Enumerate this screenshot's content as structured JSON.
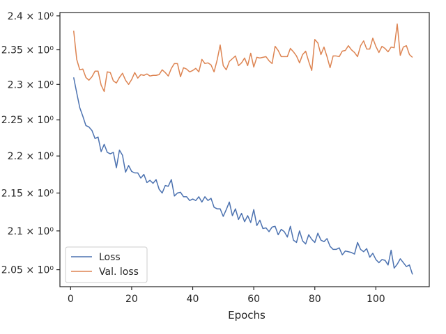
{
  "chart_data": {
    "type": "line",
    "title": "",
    "xlabel": "Epochs",
    "ylabel": "",
    "yscale": "log",
    "xlim": [
      -3.5,
      117.5
    ],
    "ylim": [
      2.0285,
      2.405
    ],
    "grid": false,
    "legend_position": "lower-left",
    "x_ticks": [
      0,
      20,
      40,
      60,
      80,
      100
    ],
    "y_ticks": [
      {
        "value": 2.05,
        "label": "2.05 × 10⁰"
      },
      {
        "value": 2.1,
        "label": "2.1 × 10⁰"
      },
      {
        "value": 2.15,
        "label": "2.15 × 10⁰"
      },
      {
        "value": 2.2,
        "label": "2.2 × 10⁰"
      },
      {
        "value": 2.25,
        "label": "2.25 × 10⁰"
      },
      {
        "value": 2.3,
        "label": "2.3 × 10⁰"
      },
      {
        "value": 2.35,
        "label": "2.35 × 10⁰"
      },
      {
        "value": 2.4,
        "label": "2.4 × 10⁰"
      }
    ],
    "series": [
      {
        "name": "Loss",
        "color": "#4c72b0",
        "x": [
          1,
          2,
          3,
          4,
          5,
          6,
          7,
          8,
          9,
          10,
          11,
          12,
          13,
          14,
          15,
          16,
          17,
          18,
          19,
          20,
          21,
          22,
          23,
          24,
          25,
          26,
          27,
          28,
          29,
          30,
          31,
          32,
          33,
          34,
          35,
          36,
          37,
          38,
          39,
          40,
          41,
          42,
          43,
          44,
          45,
          46,
          47,
          48,
          49,
          50,
          51,
          52,
          53,
          54,
          55,
          56,
          57,
          58,
          59,
          60,
          61,
          62,
          63,
          64,
          65,
          66,
          67,
          68,
          69,
          70,
          71,
          72,
          73,
          74,
          75,
          76,
          77,
          78,
          79,
          80,
          81,
          82,
          83,
          84,
          85,
          86,
          87,
          88,
          89,
          90,
          91,
          92,
          93,
          94,
          95,
          96,
          97,
          98,
          99,
          100,
          101,
          102,
          103,
          104,
          105,
          106,
          107,
          108,
          109,
          110,
          111,
          112
        ],
        "values": [
          2.31,
          2.288,
          2.267,
          2.255,
          2.242,
          2.24,
          2.235,
          2.224,
          2.226,
          2.206,
          2.216,
          2.205,
          2.203,
          2.205,
          2.184,
          2.208,
          2.201,
          2.178,
          2.187,
          2.179,
          2.177,
          2.177,
          2.17,
          2.175,
          2.164,
          2.167,
          2.163,
          2.168,
          2.155,
          2.15,
          2.16,
          2.159,
          2.168,
          2.146,
          2.15,
          2.151,
          2.145,
          2.145,
          2.14,
          2.142,
          2.14,
          2.145,
          2.138,
          2.145,
          2.14,
          2.143,
          2.131,
          2.129,
          2.129,
          2.119,
          2.128,
          2.138,
          2.12,
          2.129,
          2.115,
          2.123,
          2.112,
          2.12,
          2.111,
          2.128,
          2.107,
          2.114,
          2.103,
          2.104,
          2.099,
          2.105,
          2.106,
          2.095,
          2.102,
          2.099,
          2.092,
          2.106,
          2.088,
          2.085,
          2.1,
          2.087,
          2.083,
          2.095,
          2.089,
          2.085,
          2.097,
          2.088,
          2.086,
          2.09,
          2.08,
          2.076,
          2.076,
          2.078,
          2.069,
          2.074,
          2.073,
          2.072,
          2.07,
          2.085,
          2.076,
          2.073,
          2.077,
          2.066,
          2.071,
          2.063,
          2.059,
          2.063,
          2.062,
          2.056,
          2.075,
          2.052,
          2.057,
          2.064,
          2.059,
          2.054,
          2.056,
          2.044
        ]
      },
      {
        "name": "Val. loss",
        "color": "#dd8452",
        "x": [
          1,
          2,
          3,
          4,
          5,
          6,
          7,
          8,
          9,
          10,
          11,
          12,
          13,
          14,
          15,
          16,
          17,
          18,
          19,
          20,
          21,
          22,
          23,
          24,
          25,
          26,
          27,
          28,
          29,
          30,
          31,
          32,
          33,
          34,
          35,
          36,
          37,
          38,
          39,
          40,
          41,
          42,
          43,
          44,
          45,
          46,
          47,
          48,
          49,
          50,
          51,
          52,
          53,
          54,
          55,
          56,
          57,
          58,
          59,
          60,
          61,
          62,
          63,
          64,
          65,
          66,
          67,
          68,
          69,
          70,
          71,
          72,
          73,
          74,
          75,
          76,
          77,
          78,
          79,
          80,
          81,
          82,
          83,
          84,
          85,
          86,
          87,
          88,
          89,
          90,
          91,
          92,
          93,
          94,
          95,
          96,
          97,
          98,
          99,
          100,
          101,
          102,
          103,
          104,
          105,
          106,
          107,
          108,
          109,
          110,
          111,
          112
        ],
        "values": [
          2.378,
          2.336,
          2.321,
          2.322,
          2.31,
          2.306,
          2.311,
          2.319,
          2.319,
          2.299,
          2.29,
          2.318,
          2.317,
          2.305,
          2.302,
          2.31,
          2.316,
          2.306,
          2.3,
          2.307,
          2.317,
          2.309,
          2.314,
          2.313,
          2.315,
          2.312,
          2.313,
          2.313,
          2.314,
          2.321,
          2.317,
          2.312,
          2.323,
          2.33,
          2.33,
          2.311,
          2.324,
          2.322,
          2.318,
          2.32,
          2.323,
          2.318,
          2.336,
          2.33,
          2.331,
          2.328,
          2.318,
          2.335,
          2.357,
          2.327,
          2.321,
          2.333,
          2.337,
          2.341,
          2.327,
          2.331,
          2.338,
          2.327,
          2.345,
          2.325,
          2.339,
          2.338,
          2.339,
          2.34,
          2.334,
          2.33,
          2.355,
          2.349,
          2.34,
          2.34,
          2.34,
          2.352,
          2.347,
          2.341,
          2.331,
          2.343,
          2.348,
          2.333,
          2.32,
          2.365,
          2.36,
          2.343,
          2.354,
          2.34,
          2.324,
          2.341,
          2.341,
          2.34,
          2.348,
          2.349,
          2.356,
          2.35,
          2.346,
          2.34,
          2.356,
          2.363,
          2.351,
          2.351,
          2.367,
          2.355,
          2.346,
          2.355,
          2.352,
          2.347,
          2.354,
          2.353,
          2.388,
          2.342,
          2.354,
          2.356,
          2.343,
          2.339
        ]
      }
    ]
  }
}
